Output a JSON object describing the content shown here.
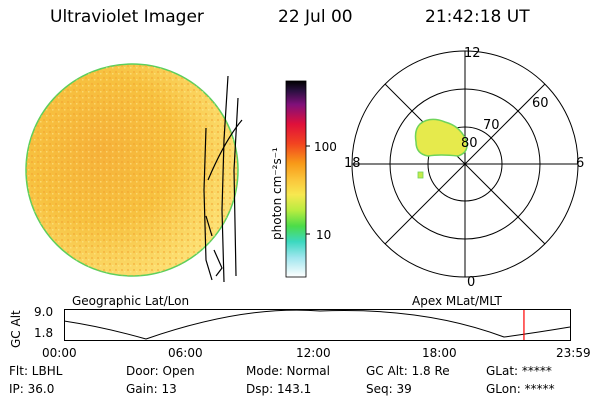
{
  "header": {
    "title": "Ultraviolet Imager",
    "date": "22 Jul 00",
    "time": "21:42:18 UT"
  },
  "colorbar": {
    "unit_label": "photon cm⁻²s⁻¹",
    "ticks": [
      "100",
      "10"
    ]
  },
  "geo_panel": {
    "label": "Geographic Lat/Lon"
  },
  "polar_panel": {
    "label": "Apex MLat/MLT",
    "lat_labels": [
      "80",
      "70",
      "60"
    ],
    "mlt_labels": {
      "top": "12",
      "left": "18",
      "right": "6",
      "bottom": "0"
    }
  },
  "timeline": {
    "axis_label": "GC Alt",
    "y_ticks": [
      "9.0",
      "1.8"
    ],
    "x_ticks": [
      "00:00",
      "06:00",
      "12:00",
      "18:00",
      "23:59"
    ],
    "current_time_fraction": 0.909,
    "marker_color": "#ff0000"
  },
  "status": {
    "flt": "Flt: LBHL",
    "ip": "IP: 36.0",
    "door": "Door: Open",
    "gain": "Gain: 13",
    "mode": "Mode: Normal",
    "dsp": "Dsp:  143.1",
    "gc_alt": "GC Alt: 1.8 Re",
    "seq": "Seq: 39",
    "glat": "GLat: *****",
    "glon": "GLon: *****"
  },
  "colors": {
    "disk_fill": "#f6c43c",
    "disk_edge": "#5ccf5c",
    "aurora": "#e8e84a"
  }
}
